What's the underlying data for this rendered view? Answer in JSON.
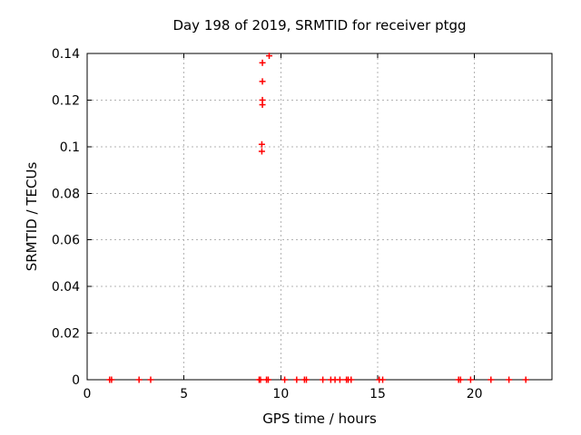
{
  "chart_data": {
    "type": "scatter",
    "title": "Day 198 of 2019, SRMTID for receiver ptgg",
    "xlabel": "GPS time / hours",
    "ylabel": "SRMTID / TECUs",
    "xlim": [
      0,
      24
    ],
    "ylim": [
      0,
      0.14
    ],
    "grid": true,
    "grid_color": "#b3b3b3",
    "border_color": "#000000",
    "background": "#ffffff",
    "legend": "none",
    "xticks": [
      {
        "value": 0,
        "label": "0"
      },
      {
        "value": 5,
        "label": "5"
      },
      {
        "value": 10,
        "label": "10"
      },
      {
        "value": 15,
        "label": "15"
      },
      {
        "value": 20,
        "label": "20"
      }
    ],
    "yticks": [
      {
        "value": 0,
        "label": "0"
      },
      {
        "value": 0.02,
        "label": "0.02"
      },
      {
        "value": 0.04,
        "label": "0.04"
      },
      {
        "value": 0.06,
        "label": "0.06"
      },
      {
        "value": 0.08,
        "label": "0.08"
      },
      {
        "value": 0.1,
        "label": "0.1"
      },
      {
        "value": 0.12,
        "label": "0.12"
      },
      {
        "value": 0.14,
        "label": "0.14"
      }
    ],
    "series": [
      {
        "name": "SRMTID",
        "marker": "plus",
        "color": "#ff0000",
        "points": [
          [
            1.16,
            0
          ],
          [
            1.26,
            0
          ],
          [
            2.68,
            0
          ],
          [
            3.28,
            0
          ],
          [
            8.88,
            0
          ],
          [
            8.95,
            0
          ],
          [
            9.26,
            0
          ],
          [
            9.35,
            0
          ],
          [
            10.2,
            0
          ],
          [
            10.82,
            0
          ],
          [
            11.22,
            0
          ],
          [
            11.32,
            0
          ],
          [
            12.17,
            0
          ],
          [
            12.58,
            0
          ],
          [
            12.8,
            0
          ],
          [
            13.05,
            0
          ],
          [
            13.39,
            0
          ],
          [
            13.48,
            0
          ],
          [
            13.63,
            0
          ],
          [
            15.08,
            0
          ],
          [
            15.26,
            0
          ],
          [
            19.18,
            0
          ],
          [
            19.28,
            0
          ],
          [
            19.8,
            0
          ],
          [
            20.85,
            0
          ],
          [
            21.78,
            0
          ],
          [
            22.65,
            0
          ],
          [
            9.02,
            0.098
          ],
          [
            9.02,
            0.101
          ],
          [
            9.05,
            0.118
          ],
          [
            9.05,
            0.12
          ],
          [
            9.05,
            0.128
          ],
          [
            9.05,
            0.136
          ],
          [
            9.4,
            0.139
          ]
        ]
      }
    ]
  }
}
